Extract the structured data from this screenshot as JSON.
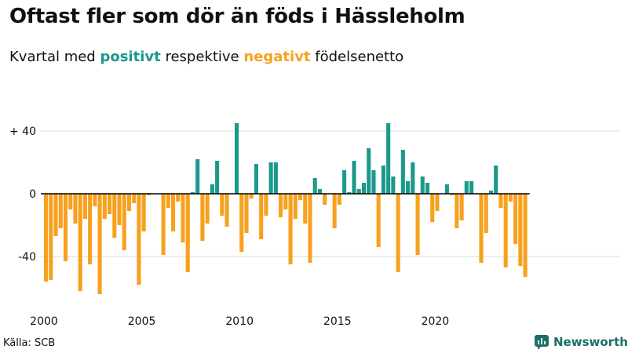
{
  "title": "Oftast fler som dör än föds i Hässleholm",
  "subtitle": {
    "prefix": "Kvartal med",
    "positive": "positivt",
    "middle": "respektive",
    "negative": "negativt",
    "suffix": "födelsenetto"
  },
  "source": "Källa: SCB",
  "brand": "Newsworthy",
  "colors": {
    "positive": "#1b998b",
    "negative": "#f7a11e",
    "axis": "#000000",
    "grid": "#d9d9d9"
  },
  "chart_data": {
    "type": "bar",
    "title": "Oftast fler som dör än föds i Hässleholm",
    "xlabel": "",
    "ylabel": "",
    "ylim": [
      -65,
      45
    ],
    "yticks": [
      -40,
      0,
      40
    ],
    "ytick_labels": [
      "-40",
      "0",
      "+ 40"
    ],
    "xticks": [
      {
        "label": "2000",
        "index": 0
      },
      {
        "label": "2005",
        "index": 20
      },
      {
        "label": "2010",
        "index": 40
      },
      {
        "label": "2015",
        "index": 60
      },
      {
        "label": "2020",
        "index": 80
      }
    ],
    "start": "2000 Q1",
    "frequency": "quarter",
    "values": [
      -56,
      -55,
      -27,
      -22,
      -43,
      -10,
      -19,
      -62,
      -16,
      -45,
      -8,
      -64,
      -16,
      -13,
      -28,
      -20,
      -36,
      -11,
      -6,
      -58,
      -24,
      -1,
      0,
      0,
      -39,
      -9,
      -24,
      -5,
      -31,
      -50,
      1,
      22,
      -30,
      -19,
      6,
      21,
      -14,
      -21,
      0,
      45,
      -37,
      -25,
      -3,
      19,
      -29,
      -14,
      20,
      20,
      -15,
      -10,
      -45,
      -16,
      -4,
      -19,
      -44,
      10,
      3,
      -7,
      0,
      -22,
      -7,
      15,
      1,
      21,
      3,
      7,
      29,
      15,
      -34,
      18,
      45,
      11,
      -50,
      28,
      8,
      20,
      -39,
      11,
      7,
      -18,
      -11,
      0,
      6,
      -1,
      -22,
      -17,
      8,
      8,
      0,
      -44,
      -25,
      2,
      18,
      -9,
      -47,
      -5,
      -32,
      -46,
      -53
    ]
  }
}
